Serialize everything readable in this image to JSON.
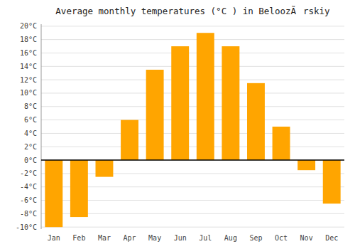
{
  "chart_data": {
    "type": "bar",
    "title": "Average monthly temperatures (°C ) in BeloozÃrskiy",
    "categories": [
      "Jan",
      "Feb",
      "Mar",
      "Apr",
      "May",
      "Jun",
      "Jul",
      "Aug",
      "Sep",
      "Oct",
      "Nov",
      "Dec"
    ],
    "values": [
      -10,
      -8.5,
      -2.5,
      6,
      13.5,
      17,
      19,
      17,
      11.5,
      5,
      -1.5,
      -6.5
    ],
    "color": "#FFA500",
    "ylim": [
      -10.3,
      20.3
    ],
    "yticks": [
      {
        "value": -10,
        "label": "-10°C"
      },
      {
        "value": -8,
        "label": "-8°C"
      },
      {
        "value": -6,
        "label": "-6°C"
      },
      {
        "value": -4,
        "label": "-4°C"
      },
      {
        "value": -2,
        "label": "-2°C"
      },
      {
        "value": 0,
        "label": "0°C"
      },
      {
        "value": 2,
        "label": "2°C"
      },
      {
        "value": 4,
        "label": "4°C"
      },
      {
        "value": 6,
        "label": "6°C"
      },
      {
        "value": 8,
        "label": "8°C"
      },
      {
        "value": 10,
        "label": "10°C"
      },
      {
        "value": 12,
        "label": "12°C"
      },
      {
        "value": 14,
        "label": "14°C"
      },
      {
        "value": 16,
        "label": "16°C"
      },
      {
        "value": 18,
        "label": "18°C"
      },
      {
        "value": 20,
        "label": "20°C"
      }
    ],
    "grid": true
  }
}
